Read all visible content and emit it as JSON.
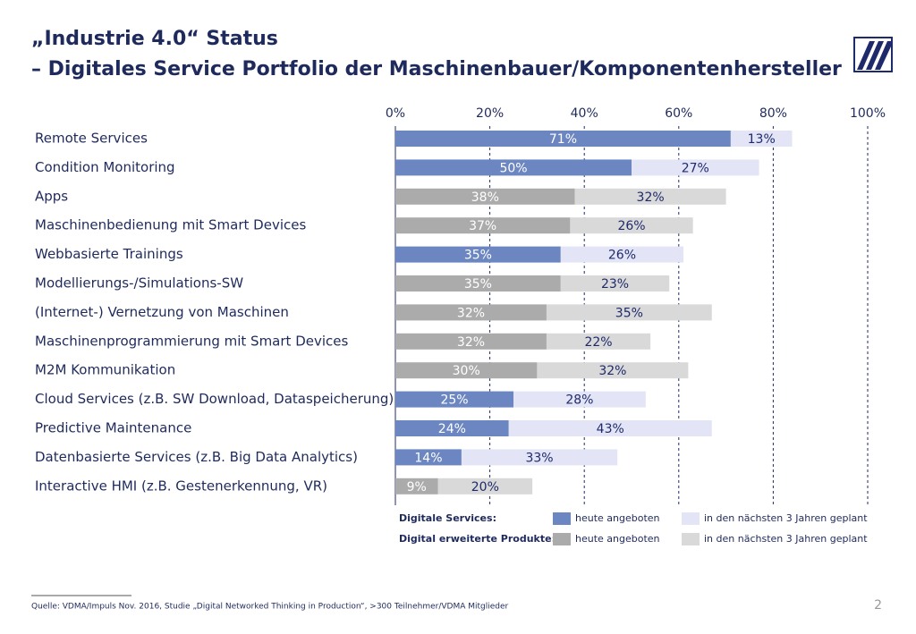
{
  "slide": {
    "title_lines": [
      "„Industrie 4.0“ Status",
      "– Digitales Service Portfolio der Maschinenbauer/Komponentenhersteller"
    ],
    "source": "Quelle: VDMA/Impuls Nov. 2016, Studie „Digital Networked Thinking in Production“, >300 Teilnehmer/VDMA Mitglieder",
    "page_number": "2"
  },
  "chart_data": {
    "type": "stacked_barh",
    "categories": [
      "Remote Services",
      "Condition Monitoring",
      "Apps",
      "Maschinenbedienung mit Smart Devices",
      "Webbasierte Trainings",
      "Modellierungs-/Simulations-SW",
      "(Internet-) Vernetzung von Maschinen",
      "Maschinenprogrammierung mit Smart Devices",
      "M2M Kommunikation",
      "Cloud Services (z.B. SW Download, Dataspeicherung)",
      "Predictive Maintenance",
      "Datenbasierte Services (z.B. Big Data Analytics)",
      "Interactive HMI (z.B. Gestenerkennung, VR)"
    ],
    "xlim": [
      0,
      100
    ],
    "xticks": [
      {
        "value": 0,
        "label": "0%"
      },
      {
        "value": 20,
        "label": "20%"
      },
      {
        "value": 40,
        "label": "40%"
      },
      {
        "value": 60,
        "label": "60%"
      },
      {
        "value": 80,
        "label": "80%"
      },
      {
        "value": 100,
        "label": "100%"
      }
    ],
    "grid": true,
    "groups": [
      {
        "title": "Digitale Services:",
        "series": [
          {
            "name": "heute angeboten",
            "color": "#6b86c1",
            "label_color": "#ffffff",
            "values": [
              71,
              50,
              null,
              null,
              35,
              null,
              null,
              null,
              null,
              25,
              24,
              14,
              null
            ],
            "value_labels": [
              "71%",
              "50%",
              null,
              null,
              "35%",
              null,
              null,
              null,
              null,
              "25%",
              "24%",
              "14%",
              null
            ]
          },
          {
            "name": "in den nächsten 3 Jahren geplant",
            "color": "#e3e5f7",
            "label_color": "#1f2a6b",
            "values": [
              13,
              27,
              null,
              null,
              26,
              null,
              null,
              null,
              null,
              28,
              43,
              33,
              null
            ],
            "value_labels": [
              "13%",
              "27%",
              null,
              null,
              "26%",
              null,
              null,
              null,
              null,
              "28%",
              "43%",
              "33%",
              null
            ]
          }
        ]
      },
      {
        "title": "Digital erweiterte Produkte:",
        "series": [
          {
            "name": "heute angeboten",
            "color": "#ababab",
            "label_color": "#ffffff",
            "values": [
              null,
              null,
              38,
              37,
              null,
              35,
              32,
              32,
              30,
              null,
              null,
              null,
              9
            ],
            "value_labels": [
              null,
              null,
              "38%",
              "37%",
              null,
              "35%",
              "32%",
              "32%",
              "30%",
              null,
              null,
              null,
              "9%"
            ]
          },
          {
            "name": "in den nächsten 3 Jahren geplant",
            "color": "#d9d9d9",
            "label_color": "#1f2a6b",
            "values": [
              null,
              null,
              32,
              26,
              null,
              23,
              35,
              22,
              32,
              null,
              null,
              null,
              20
            ],
            "value_labels": [
              null,
              null,
              "32%",
              "26%",
              null,
              "23%",
              "35%",
              "22%",
              "32%",
              null,
              null,
              null,
              "20%"
            ]
          }
        ]
      }
    ]
  }
}
